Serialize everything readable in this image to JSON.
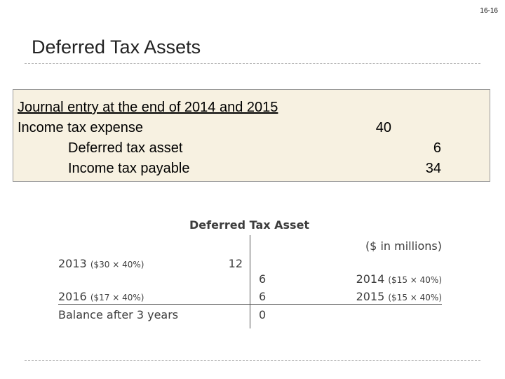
{
  "page_number": "16-16",
  "title": "Deferred Tax Assets",
  "journal": {
    "heading": "Journal entry at the end of 2014 and 2015",
    "rows": [
      {
        "account": "Income tax expense",
        "debit": "40"
      },
      {
        "account": "Deferred tax asset",
        "credit": "6"
      },
      {
        "account": "Income tax payable",
        "credit": "34"
      }
    ]
  },
  "t_account": {
    "title": "Deferred Tax Asset",
    "unit": "($ in millions)",
    "rows": [
      {
        "left_year": "2013",
        "left_calc": "($30 × 40%)",
        "debit": "12"
      },
      {
        "credit": "6",
        "right_year": "2014",
        "right_calc": "($15 × 40%)"
      },
      {
        "left_year": "2016",
        "left_calc": "($17 × 40%)",
        "credit": "6",
        "right_year": "2015",
        "right_calc": "($15 × 40%)"
      }
    ],
    "balance_label": "Balance after 3 years",
    "balance": "0"
  }
}
